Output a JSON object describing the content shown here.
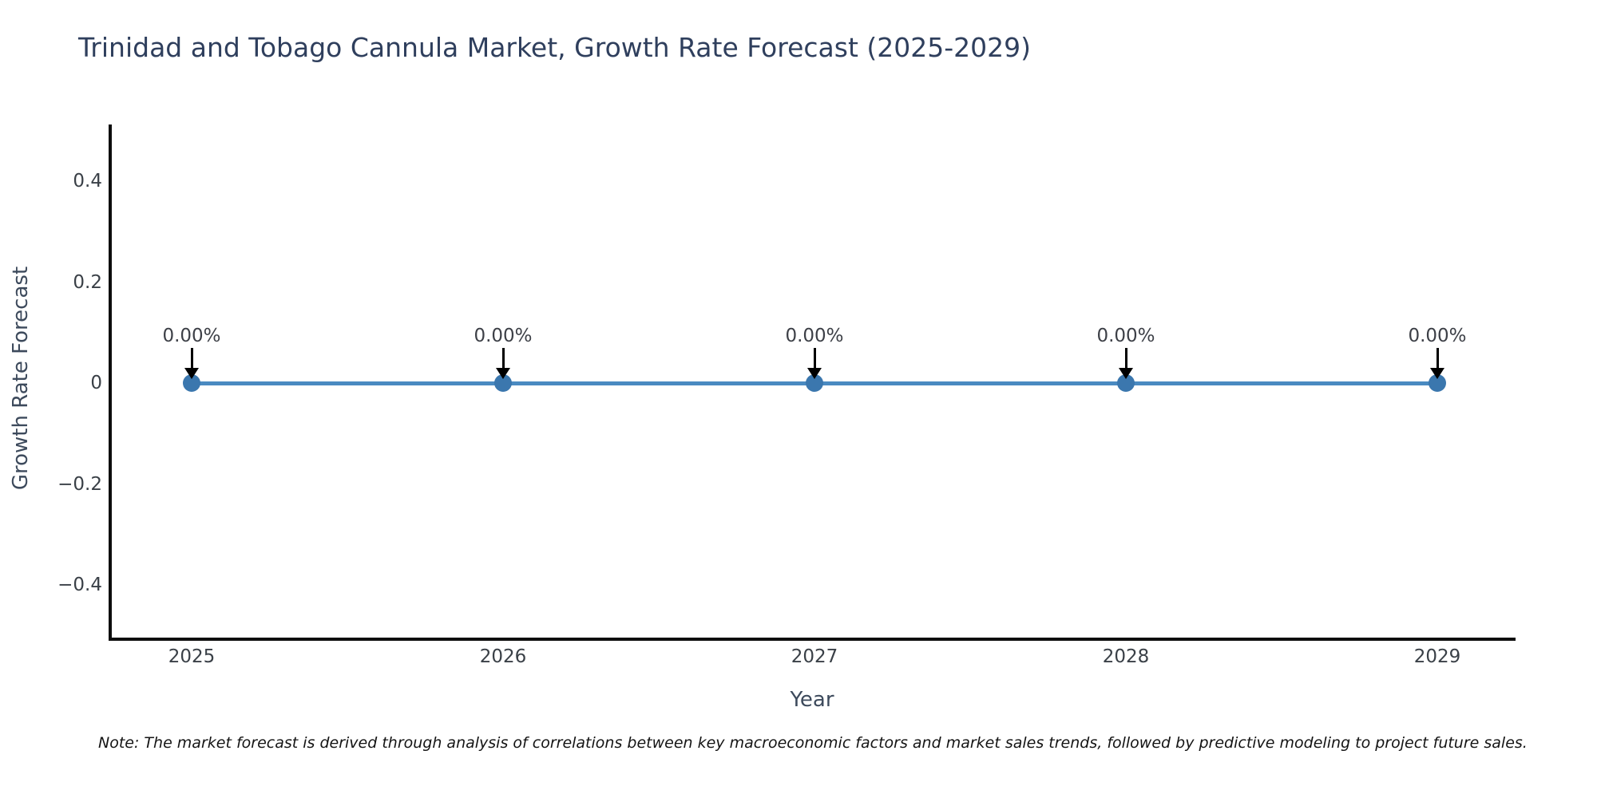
{
  "chart_data": {
    "type": "line",
    "title": "Trinidad and Tobago Cannula Market, Growth Rate Forecast (2025-2029)",
    "xlabel": "Year",
    "ylabel": "Growth Rate Forecast",
    "categories": [
      "2025",
      "2026",
      "2027",
      "2028",
      "2029"
    ],
    "x": [
      2025,
      2026,
      2027,
      2028,
      2029
    ],
    "series": [
      {
        "name": "Growth Rate Forecast",
        "values": [
          0,
          0,
          0,
          0,
          0
        ]
      }
    ],
    "point_labels": [
      "0.00%",
      "0.00%",
      "0.00%",
      "0.00%",
      "0.00%"
    ],
    "yticks": [
      0.4,
      0.2,
      0,
      -0.2,
      -0.4
    ],
    "ytick_labels": [
      "0.4",
      "0.2",
      "0",
      "−0.2",
      "−0.4"
    ],
    "ylim": [
      -0.51,
      0.51
    ],
    "grid": false,
    "legend": "none",
    "annotation_arrows": "down-arrow pointing to each data point",
    "note": "Note: The market forecast is derived through analysis of correlations between key macroeconomic factors and market sales trends, followed by predictive modeling to project future sales.",
    "colors": {
      "line": "#4a8ac1",
      "marker": "#3b77ae",
      "arrow": "#000000",
      "title_text": "#2f3f5d",
      "axis_line": "#0d0d0d",
      "tick_text": "#3a4047",
      "axis_title_text": "#3d4a5c",
      "note_text": "#141414",
      "background": "#ffffff"
    }
  }
}
